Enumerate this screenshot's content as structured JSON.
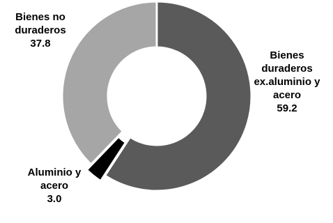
{
  "chart_data": {
    "type": "pie",
    "variant": "donut",
    "title": "",
    "slices": [
      {
        "name": "Bienes duraderos ex.aluminio y acero",
        "value": 59.2,
        "value_label": "59.2",
        "color": "#5a5a5a",
        "exploded": false,
        "label_lines": [
          "Bienes",
          "duraderos",
          "ex.aluminio y",
          "acero"
        ]
      },
      {
        "name": "Aluminio y acero",
        "value": 3.0,
        "value_label": "3.0",
        "color": "#000000",
        "exploded": true,
        "label_lines": [
          "Aluminio y",
          "acero"
        ]
      },
      {
        "name": "Bienes no duraderos",
        "value": 37.8,
        "value_label": "37.8",
        "color": "#a6a6a6",
        "exploded": false,
        "label_lines": [
          "Bienes no",
          "duraderos"
        ]
      }
    ],
    "start_angle_deg": 0,
    "direction": "clockwise",
    "legend": "none"
  }
}
